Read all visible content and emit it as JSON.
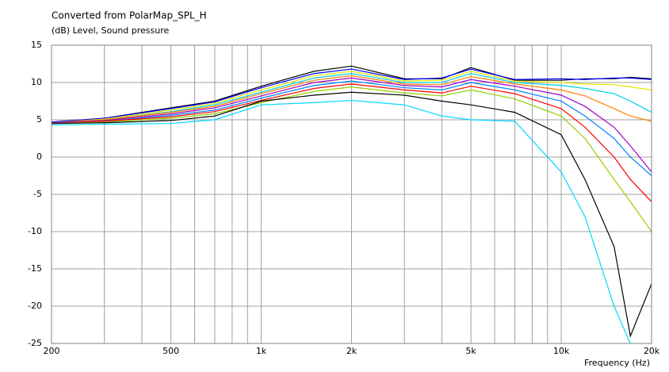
{
  "chart_data": {
    "type": "line",
    "title": "Converted from PolarMap_SPL_H",
    "subtitle": "(dB)  Level, Sound pressure",
    "x_label": "Frequency  (Hz)",
    "log_x": true,
    "grid": true,
    "xlim": [
      200,
      20000
    ],
    "ylim": [
      -25,
      15
    ],
    "yticks": [
      15,
      10,
      5,
      0,
      -5,
      -10,
      -15,
      -20,
      -25
    ],
    "xticks": [
      200,
      500,
      {
        "value": 1000,
        "label": "1k"
      },
      {
        "value": 2000,
        "label": "2k"
      },
      {
        "value": 5000,
        "label": "5k"
      },
      {
        "value": 10000,
        "label": "10k"
      },
      {
        "value": 20000,
        "label": "20k"
      }
    ],
    "xminorticks": [
      300,
      400,
      600,
      700,
      800,
      900,
      3000,
      4000,
      6000,
      7000,
      8000,
      9000
    ],
    "x": [
      200,
      300,
      500,
      700,
      1000,
      1500,
      2000,
      3000,
      4000,
      5000,
      7000,
      10000,
      12000,
      15000,
      17000,
      20000
    ],
    "series": [
      {
        "color": "#000000",
        "values": [
          4.7,
          5.2,
          6.6,
          7.5,
          9.5,
          11.5,
          12.2,
          10.5,
          10.5,
          12,
          10.3,
          10.3,
          10.5,
          10.5,
          10.7,
          10.5
        ]
      },
      {
        "color": "#0000ff",
        "values": [
          4.7,
          5.2,
          6.5,
          7.4,
          9.3,
          11.2,
          11.8,
          10.4,
          10.6,
          11.8,
          10.4,
          10.5,
          10.4,
          10.6,
          10.6,
          10.4
        ]
      },
      {
        "color": "#e6e600",
        "values": [
          4.6,
          5.1,
          6.3,
          7.2,
          9,
          10.9,
          11.5,
          10.2,
          10.3,
          11.5,
          10.2,
          10,
          9.8,
          9.7,
          9.4,
          9
        ]
      },
      {
        "color": "#00d0e0",
        "values": [
          4.6,
          5,
          6.1,
          7,
          8.7,
          10.6,
          11.2,
          10,
          10,
          11.2,
          10,
          9.6,
          9.2,
          8.5,
          7.5,
          6
        ]
      },
      {
        "color": "#ff8000",
        "values": [
          4.6,
          5,
          6,
          6.8,
          8.5,
          10.3,
          10.9,
          9.8,
          9.7,
          10.8,
          9.8,
          9,
          8.2,
          6.5,
          5.5,
          4.8
        ]
      },
      {
        "color": "#a000c0",
        "values": [
          4.6,
          4.9,
          5.8,
          6.6,
          8.2,
          10,
          10.6,
          9.6,
          9.4,
          10.4,
          9.5,
          8.3,
          6.8,
          4,
          1.5,
          -2
        ]
      },
      {
        "color": "#0080ff",
        "values": [
          4.5,
          4.8,
          5.6,
          6.3,
          7.9,
          9.6,
          10.2,
          9.3,
          9,
          10,
          9,
          7.5,
          5.5,
          2.5,
          0,
          -2.5
        ]
      },
      {
        "color": "#ff0000",
        "values": [
          4.5,
          4.8,
          5.4,
          6.1,
          7.6,
          9.2,
          9.8,
          9,
          8.6,
          9.5,
          8.5,
          6.5,
          4,
          0,
          -3,
          -6
        ]
      },
      {
        "color": "#90d000",
        "values": [
          4.5,
          4.7,
          5.2,
          5.8,
          7.3,
          8.8,
          9.4,
          8.6,
          8.2,
          9,
          7.8,
          5.5,
          2.5,
          -3,
          -6,
          -10
        ]
      },
      {
        "color": "#000000",
        "values": [
          4.5,
          4.6,
          4.9,
          5.5,
          7.5,
          8.3,
          8.7,
          8.3,
          7.5,
          7,
          6,
          3,
          -3,
          -12,
          -24,
          -17
        ]
      },
      {
        "color": "#00d8ff",
        "values": [
          4.3,
          4.4,
          4.5,
          5,
          7,
          7.3,
          7.6,
          7,
          5.5,
          5,
          4.8,
          -2,
          -8,
          -20,
          -25,
          null
        ]
      }
    ]
  }
}
